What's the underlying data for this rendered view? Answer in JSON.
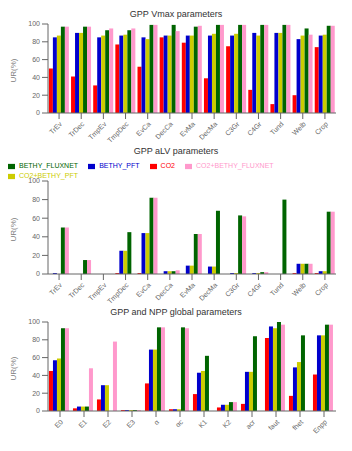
{
  "chart_data": [
    {
      "type": "bar",
      "title": "GPP Vmax parameters",
      "ylabel": "UR(%)",
      "categories": [
        "TrEv",
        "TrDec",
        "TmpEv",
        "TmpDec",
        "EvCa",
        "DecCa",
        "EvMa",
        "DecMa",
        "C3Gr",
        "C4Gr",
        "Tund",
        "Welb",
        "Crop"
      ],
      "series": [
        {
          "name": "CO2",
          "color": "#FF0000",
          "values": [
            50,
            41,
            31,
            77,
            52,
            85,
            79,
            39,
            75,
            26,
            10,
            20,
            74
          ]
        },
        {
          "name": "BETHY_PFT",
          "color": "#0000CC",
          "values": [
            85,
            90,
            85,
            87,
            85,
            87,
            87,
            87,
            87,
            90,
            90,
            83,
            87
          ]
        },
        {
          "name": "CO2+BETHY_PFT",
          "color": "#CCCC00",
          "values": [
            87,
            90,
            87,
            88,
            83,
            87,
            87,
            89,
            89,
            87,
            90,
            87,
            88
          ]
        },
        {
          "name": "BETHY_FLUXNET",
          "color": "#006400",
          "values": [
            97,
            97,
            93,
            93,
            99,
            99,
            97,
            99,
            99,
            99,
            99,
            95,
            98
          ]
        },
        {
          "name": "CO2+BETHY_FLUXNET",
          "color": "#FF99CC",
          "values": [
            97,
            97,
            95,
            95,
            99,
            92,
            98,
            99,
            99,
            99,
            99,
            88,
            98
          ]
        }
      ],
      "ylim": [
        0,
        100
      ],
      "yticks": [
        0,
        20,
        40,
        60,
        80,
        100
      ],
      "grid": false,
      "legend": false
    },
    {
      "type": "bar",
      "title": "GPP aLV parameters",
      "ylabel": "UR(%)",
      "categories": [
        "TrEv",
        "TrDec",
        "TmpEv",
        "TmpDec",
        "EvCa",
        "DecCa",
        "EvMa",
        "DecMa",
        "C3Gr",
        "C4Gr",
        "Tund",
        "Welb",
        "Crop"
      ],
      "series": [
        {
          "name": "CO2",
          "color": "#FF0000",
          "values": [
            0,
            0,
            0,
            1,
            1,
            0,
            0,
            0,
            0,
            0,
            0,
            1,
            1
          ]
        },
        {
          "name": "BETHY_PFT",
          "color": "#0000CC",
          "values": [
            1,
            0,
            0,
            25,
            44,
            3,
            9,
            8,
            1,
            1,
            0,
            11,
            3
          ]
        },
        {
          "name": "CO2+BETHY_PFT",
          "color": "#CCCC00",
          "values": [
            0,
            0,
            0,
            25,
            44,
            3,
            9,
            8,
            1,
            1,
            0,
            11,
            3
          ]
        },
        {
          "name": "BETHY_FLUXNET",
          "color": "#006400",
          "values": [
            50,
            15,
            0,
            45,
            82,
            3,
            43,
            68,
            63,
            2,
            80,
            11,
            67
          ]
        },
        {
          "name": "CO2+BETHY_FLUXNET",
          "color": "#FF99CC",
          "values": [
            50,
            15,
            0,
            0,
            82,
            4,
            43,
            0,
            62,
            2,
            0,
            11,
            67
          ]
        }
      ],
      "ylim": [
        0,
        100
      ],
      "yticks": [
        0,
        20,
        40,
        60,
        80,
        100
      ],
      "grid": false,
      "legend": "upper left"
    },
    {
      "type": "bar",
      "title": "GPP and NPP global parameters",
      "ylabel": "UR(%)",
      "categories": [
        "E0",
        "E1",
        "E2",
        "E3",
        "α",
        "αc",
        "K1",
        "K2",
        "acr",
        "faut",
        "fhet",
        "Enpp"
      ],
      "series": [
        {
          "name": "CO2",
          "color": "#FF0000",
          "values": [
            45,
            3,
            13,
            1,
            31,
            2,
            19,
            4,
            8,
            82,
            17,
            41
          ]
        },
        {
          "name": "BETHY_PFT",
          "color": "#0000CC",
          "values": [
            57,
            5,
            29,
            1,
            69,
            2,
            43,
            7,
            44,
            95,
            49,
            85
          ]
        },
        {
          "name": "CO2+BETHY_PFT",
          "color": "#CCCC00",
          "values": [
            59,
            5,
            29,
            1,
            69,
            2,
            45,
            7,
            44,
            93,
            55,
            85
          ]
        },
        {
          "name": "BETHY_FLUXNET",
          "color": "#006400",
          "values": [
            93,
            5,
            0,
            1,
            94,
            94,
            62,
            10,
            84,
            100,
            85,
            97
          ]
        },
        {
          "name": "CO2+BETHY_FLUXNET",
          "color": "#FF99CC",
          "values": [
            93,
            48,
            78,
            1,
            94,
            93,
            0,
            10,
            0,
            97,
            0,
            97
          ]
        }
      ],
      "ylim": [
        0,
        100
      ],
      "yticks": [
        0,
        20,
        40,
        60,
        80,
        100
      ],
      "grid": false,
      "legend": false
    }
  ]
}
